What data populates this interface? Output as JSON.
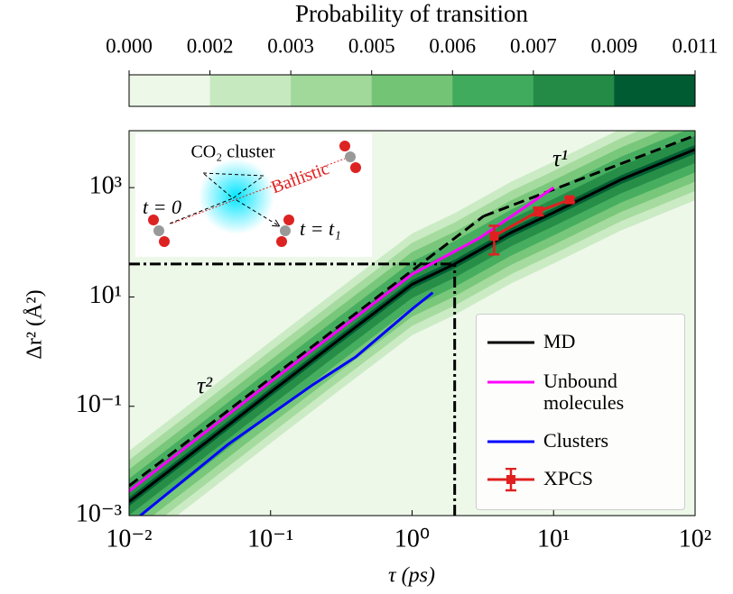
{
  "chart_data": {
    "type": "line",
    "xlabel": "τ (ps)",
    "ylabel": "Δr² (Å²)",
    "xscale": "log",
    "yscale": "log",
    "xlim": [
      0.01,
      100
    ],
    "ylim": [
      0.001,
      11000
    ],
    "xticks": [
      {
        "value": 0.01,
        "label": "10⁻²"
      },
      {
        "value": 0.1,
        "label": "10⁻¹"
      },
      {
        "value": 1,
        "label": "10⁰"
      },
      {
        "value": 10,
        "label": "10¹"
      },
      {
        "value": 100,
        "label": "10²"
      }
    ],
    "yticks": [
      {
        "value": 0.001,
        "label": "10⁻³"
      },
      {
        "value": 0.1,
        "label": "10⁻¹"
      },
      {
        "value": 10,
        "label": "10¹"
      },
      {
        "value": 1000,
        "label": "10³"
      }
    ],
    "legend": "lower right",
    "series": [
      {
        "name": "MD",
        "color": "#000000",
        "x": [
          0.01,
          0.03,
          0.1,
          0.3,
          1,
          2,
          5,
          10,
          30,
          100
        ],
        "values": [
          0.0018,
          0.016,
          0.18,
          1.6,
          17,
          40,
          150,
          350,
          1400,
          5000
        ]
      },
      {
        "name": "Unbound molecules",
        "color": "#ff00ff",
        "x": [
          0.01,
          0.1,
          1,
          3,
          10
        ],
        "values": [
          0.0028,
          0.28,
          26,
          120,
          1000
        ]
      },
      {
        "name": "Clusters",
        "color": "#0000ff",
        "x": [
          0.012,
          0.05,
          0.2,
          0.4,
          1,
          1.4
        ],
        "values": [
          0.001,
          0.02,
          0.25,
          0.8,
          6,
          12
        ]
      },
      {
        "name": "XPCS",
        "color": "#e02020",
        "x": [
          3.8,
          7.8,
          13
        ],
        "values": [
          130,
          370,
          600
        ],
        "errors": [
          70,
          60,
          60
        ]
      }
    ],
    "guides": [
      {
        "label": "τ²",
        "x": [
          0.01,
          3.2
        ],
        "values": [
          0.0035,
          300
        ]
      },
      {
        "label": "τ¹",
        "x": [
          3.2,
          100
        ],
        "values": [
          300,
          9000
        ]
      }
    ],
    "crossover": {
      "x": 2,
      "y": 40
    },
    "colorbar": {
      "label": "Probability of transition",
      "ticks": [
        {
          "value": 0,
          "label": "0.000"
        },
        0.002,
        0.003,
        0.005,
        0.006,
        0.007,
        0.009,
        0.011
      ],
      "colors": [
        "#edf8e9",
        "#c7e9c0",
        "#a1d99b",
        "#74c476",
        "#41ab5d",
        "#238b45",
        "#005a32"
      ]
    },
    "inset": {
      "title": "CO₂ cluster",
      "start": "t = 0",
      "end": "t = t₁",
      "path": "Ballistic"
    }
  }
}
